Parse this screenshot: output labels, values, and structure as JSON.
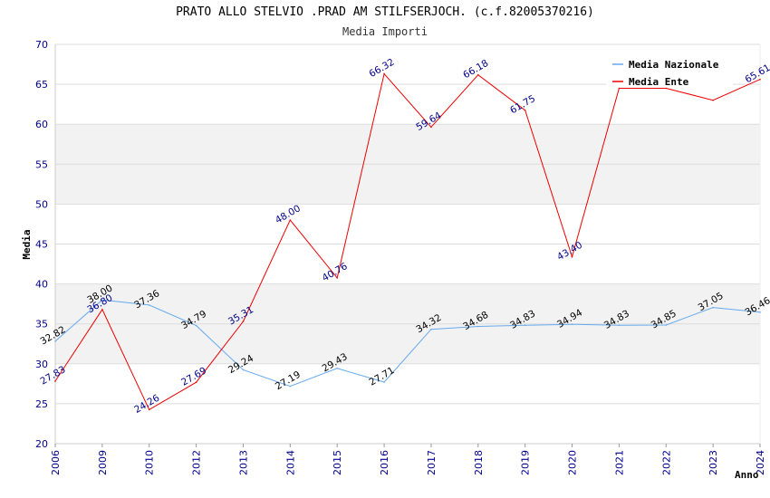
{
  "chart_data": {
    "type": "line",
    "title": "PRATO ALLO STELVIO .PRAD AM STILFSERJOCH. (c.f.82005370216)",
    "subtitle": "Media Importi",
    "xlabel": "Anno",
    "ylabel": "Media",
    "ylim": [
      20,
      70
    ],
    "yticks": [
      "20",
      "25",
      "30",
      "35",
      "40",
      "45",
      "50",
      "55",
      "60",
      "65",
      "70"
    ],
    "categories": [
      "2006",
      "2009",
      "2010",
      "2012",
      "2013",
      "2014",
      "2015",
      "2016",
      "2017",
      "2018",
      "2019",
      "2020",
      "2021",
      "2022",
      "2023",
      "2024"
    ],
    "grid": "horizontal",
    "legend_position": "top-right",
    "series": [
      {
        "name": "Media Nazionale",
        "color": "#66aaee",
        "label_color": "#000000",
        "values": [
          32.82,
          38.0,
          37.36,
          34.79,
          29.24,
          27.19,
          29.43,
          27.71,
          34.32,
          34.68,
          34.83,
          34.94,
          34.83,
          34.85,
          37.05,
          36.46
        ],
        "labels": [
          "32.82",
          "38.00",
          "37.36",
          "34.79",
          "29.24",
          "27.19",
          "29.43",
          "27.71",
          "34.32",
          "34.68",
          "34.83",
          "34.94",
          "34.83",
          "34.85",
          "37.05",
          "36.46"
        ]
      },
      {
        "name": "Media Ente",
        "color": "#ee0000",
        "label_color": "#00008b",
        "values": [
          27.83,
          36.8,
          24.26,
          27.69,
          35.31,
          48.0,
          40.76,
          66.32,
          59.64,
          66.18,
          61.75,
          43.4,
          64.5,
          64.5,
          63.0,
          65.61
        ],
        "labels": [
          "27.83",
          "36.80",
          "24.26",
          "27.69",
          "35.31",
          "48.00",
          "40.76",
          "66.32",
          "59.64",
          "66.18",
          "61.75",
          "43.40",
          "",
          "",
          "",
          "65.61"
        ]
      }
    ]
  }
}
